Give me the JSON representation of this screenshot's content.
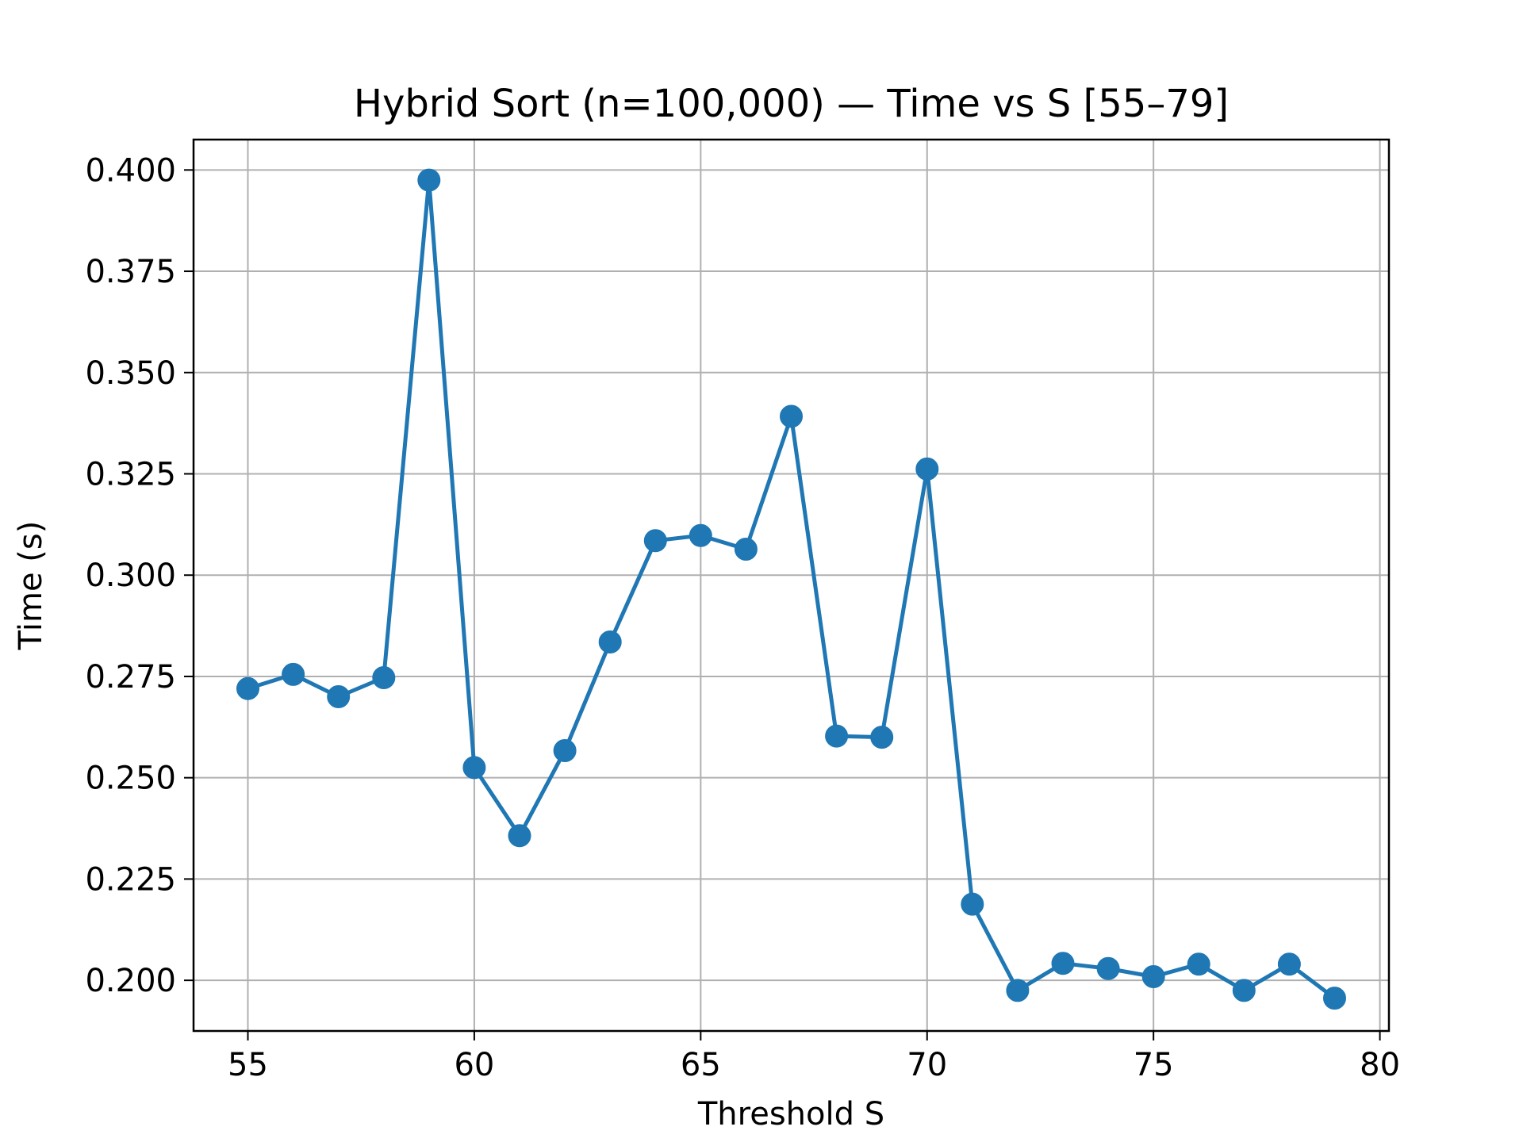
{
  "chart_data": {
    "type": "line",
    "title": "Hybrid Sort (n=100,000) — Time vs S [55–79]",
    "xlabel": "Threshold S",
    "ylabel": "Time (s)",
    "xlim": [
      53.8,
      80.2
    ],
    "ylim": [
      0.1875,
      0.4075
    ],
    "xticks": [
      55,
      60,
      65,
      70,
      75,
      80
    ],
    "xtick_labels": [
      "55",
      "60",
      "65",
      "70",
      "75",
      "80"
    ],
    "yticks": [
      0.2,
      0.225,
      0.25,
      0.275,
      0.3,
      0.325,
      0.35,
      0.375,
      0.4
    ],
    "ytick_labels": [
      "0.200",
      "0.225",
      "0.250",
      "0.275",
      "0.300",
      "0.325",
      "0.350",
      "0.375",
      "0.400"
    ],
    "grid": true,
    "line_color": "#1f77b4",
    "marker": "circle",
    "series": [
      {
        "x": [
          55,
          56,
          57,
          58,
          59,
          60,
          61,
          62,
          63,
          64,
          65,
          66,
          67,
          68,
          69,
          70,
          71,
          72,
          73,
          74,
          75,
          76,
          77,
          78,
          79
        ],
        "y": [
          0.272,
          0.2755,
          0.27,
          0.2747,
          0.3975,
          0.2525,
          0.2357,
          0.2567,
          0.2835,
          0.3085,
          0.3098,
          0.3064,
          0.3392,
          0.2603,
          0.26,
          0.3262,
          0.2188,
          0.1975,
          0.2042,
          0.2029,
          0.2009,
          0.204,
          0.1975,
          0.204,
          0.1956
        ]
      }
    ]
  }
}
